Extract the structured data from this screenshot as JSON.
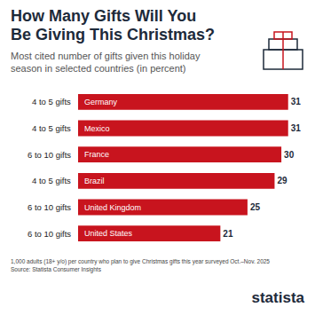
{
  "chart_data": {
    "type": "bar",
    "orientation": "horizontal",
    "title": "How Many Gifts Will You Be Giving This Christmas?",
    "subtitle": "Most cited number of gifts given this holiday season in selected countries (in percent)",
    "categories": [
      "Germany",
      "Mexico",
      "France",
      "Brazil",
      "United Kingdom",
      "United States"
    ],
    "gifts": [
      "4 to 5 gifts",
      "4 to 5 gifts",
      "6 to 10 gifts",
      "4 to 5 gifts",
      "6 to 10 gifts",
      "6 to 10 gifts"
    ],
    "values": [
      31,
      31,
      30,
      29,
      25,
      21
    ],
    "color": "#c8141e",
    "xlim": [
      0,
      33
    ],
    "data_labels": true,
    "tick_labels": false,
    "grid": false,
    "note": "1,000 adults (18+ y/o) per country who plan to give Christmas gifts this year surveyed Oct.–Nov. 2025",
    "source": "Source: Statista Consumer Insights",
    "logo": "statista"
  }
}
